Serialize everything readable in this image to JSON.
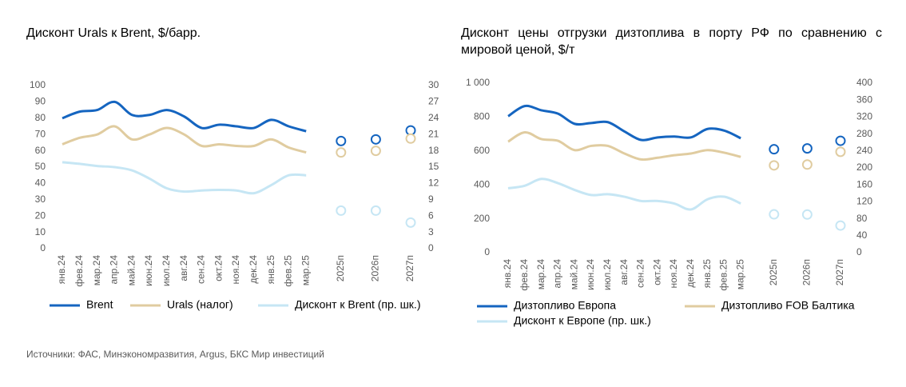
{
  "chart_data": [
    {
      "type": "line",
      "title": "Дисконт Urals к Brent, $/барр.",
      "categories": [
        "янв.24",
        "фев.24",
        "мар.24",
        "апр.24",
        "май.24",
        "июн.24",
        "июл.24",
        "авг.24",
        "сен.24",
        "окт.24",
        "ноя.24",
        "дек.24",
        "янв.25",
        "фев.25",
        "мар.25"
      ],
      "forecast_categories": [
        "2025п",
        "2026п",
        "2027п"
      ],
      "ylim": [
        0,
        100
      ],
      "yticks": [
        0,
        10,
        20,
        30,
        40,
        50,
        60,
        70,
        80,
        90,
        100
      ],
      "y2lim": [
        0,
        30
      ],
      "y2ticks": [
        0,
        3,
        6,
        9,
        12,
        15,
        18,
        21,
        24,
        27,
        30
      ],
      "series": [
        {
          "name": "Brent",
          "color": "#1565c0",
          "values": [
            80,
            84,
            85,
            90,
            82,
            82,
            85,
            81,
            74,
            76,
            75,
            74,
            79,
            75,
            72
          ],
          "forecast": [
            66,
            67,
            72.5
          ]
        },
        {
          "name": "Urals (налог)",
          "color": "#e0cca0",
          "values": [
            64,
            68,
            70,
            75,
            67,
            70,
            74,
            70,
            63,
            64,
            63,
            63,
            67,
            62,
            59
          ],
          "forecast": [
            59,
            60,
            67.5
          ]
        },
        {
          "name": "Дисконт к Brent (пр. шк.)",
          "color": "#c6e6f4",
          "axis": "y2",
          "values": [
            15.9,
            15.6,
            15.2,
            15,
            14.4,
            12.9,
            11.1,
            10.5,
            10.7,
            10.8,
            10.7,
            10.2,
            11.7,
            13.5,
            13.5
          ],
          "forecast": [
            7,
            7,
            4.8
          ]
        }
      ]
    },
    {
      "type": "line",
      "title": "Дисконт цены отгрузки дизтоплива в порту РФ по сравнению с мировой ценой, $/т",
      "categories": [
        "янв.24",
        "фев.24",
        "мар.24",
        "апр.24",
        "май.24",
        "июн.24",
        "июл.24",
        "авг.24",
        "сен.24",
        "окт.24",
        "ноя.24",
        "дек.24",
        "янв.25",
        "фев.25",
        "мар.25"
      ],
      "forecast_categories": [
        "2025п",
        "2026п",
        "2027п"
      ],
      "ylim": [
        0,
        1000
      ],
      "yticks": [
        0,
        200,
        400,
        600,
        800,
        {
          "value": 1000,
          "label": "1 000"
        }
      ],
      "y2lim": [
        0,
        400
      ],
      "y2ticks": [
        0,
        40,
        80,
        120,
        160,
        200,
        240,
        280,
        320,
        360,
        400
      ],
      "series": [
        {
          "name": "Дизтопливо Европа",
          "color": "#1565c0",
          "values": [
            805,
            865,
            840,
            820,
            760,
            765,
            770,
            715,
            665,
            680,
            685,
            680,
            730,
            720,
            675
          ],
          "forecast": [
            610,
            615,
            660
          ]
        },
        {
          "name": "Дизтопливо FOB Балтика",
          "color": "#e0cca0",
          "values": [
            655,
            710,
            670,
            660,
            605,
            630,
            630,
            585,
            550,
            560,
            575,
            585,
            605,
            590,
            565
          ],
          "forecast": [
            515,
            520,
            595
          ]
        },
        {
          "name": "Дисконт к Европе  (пр. шк.)",
          "color": "#c6e6f4",
          "axis": "y2",
          "values": [
            152,
            158,
            174,
            164,
            148,
            136,
            138,
            132,
            122,
            122,
            116,
            102,
            126,
            132,
            116
          ],
          "forecast": [
            90.5,
            90,
            64
          ]
        }
      ]
    }
  ],
  "source": "Источники: ФАС, Минэкономразвития, Argus, БКС Мир инвестиций"
}
